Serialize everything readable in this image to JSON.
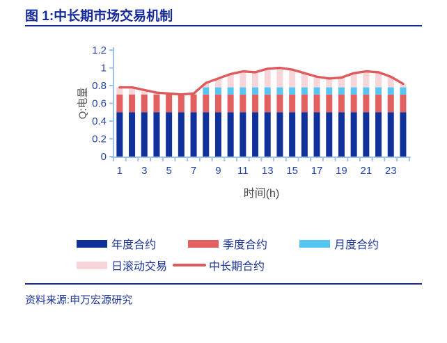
{
  "title": "图 1:中长期市场交易机制",
  "source": "资料来源:申万宏源研究",
  "colors": {
    "navy_text": "#1B3399",
    "title_navy": "#15299B",
    "axis": "#9DC3E6",
    "tick_label": "#2643A5",
    "annual_bar": "#10309A",
    "quarterly_bar": "#E2605F",
    "monthly_bar": "#57C5F2",
    "daily_bar": "#F7D5D8",
    "line": "#DF5A5C"
  },
  "chart_data": {
    "type": "bar",
    "subtype": "stacked-bars-with-line",
    "title": "图 1:中长期市场交易机制",
    "xlabel": "时间(h)",
    "ylabel": "Q:电量",
    "ylim": [
      0,
      1.2
    ],
    "grid": false,
    "legend_position": "bottom",
    "x": [
      1,
      2,
      3,
      4,
      5,
      6,
      7,
      8,
      9,
      10,
      11,
      12,
      13,
      14,
      15,
      16,
      17,
      18,
      19,
      20,
      21,
      22,
      23,
      24
    ],
    "x_tick_hours": [
      1,
      3,
      5,
      7,
      9,
      11,
      13,
      15,
      17,
      19,
      21,
      23
    ],
    "x_tick_labels": [
      "1",
      "3",
      "5",
      "7",
      "9",
      "11",
      "13",
      "15",
      "17",
      "19",
      "21",
      "23"
    ],
    "y_tick_values": [
      0,
      0.2,
      0.4,
      0.6,
      0.8,
      1,
      1.2
    ],
    "y_tick_labels": [
      "0",
      "0.2",
      "0.4",
      "0.6",
      "0.8",
      "1",
      "1.2"
    ],
    "series": [
      {
        "name": "年度合约",
        "type": "bar",
        "color": "#10309A",
        "values": [
          0.5,
          0.5,
          0.5,
          0.5,
          0.5,
          0.5,
          0.5,
          0.5,
          0.5,
          0.5,
          0.5,
          0.5,
          0.5,
          0.5,
          0.5,
          0.5,
          0.5,
          0.5,
          0.5,
          0.5,
          0.5,
          0.5,
          0.5,
          0.5
        ]
      },
      {
        "name": "季度合约",
        "type": "bar",
        "color": "#E2605F",
        "values": [
          0.2,
          0.2,
          0.2,
          0.2,
          0.2,
          0.2,
          0.2,
          0.2,
          0.2,
          0.2,
          0.2,
          0.2,
          0.2,
          0.2,
          0.2,
          0.2,
          0.2,
          0.2,
          0.2,
          0.2,
          0.2,
          0.2,
          0.2,
          0.2
        ]
      },
      {
        "name": "月度合约",
        "type": "bar",
        "color": "#57C5F2",
        "values": [
          0,
          0,
          0,
          0,
          0,
          0,
          0,
          0.08,
          0.08,
          0.08,
          0.08,
          0.08,
          0.08,
          0.08,
          0.08,
          0.08,
          0.08,
          0.08,
          0.08,
          0.08,
          0.08,
          0.08,
          0.08,
          0.08
        ]
      },
      {
        "name": "日滚动交易",
        "type": "bar",
        "color": "#F7D5D8",
        "values": [
          0.08,
          0.08,
          0.05,
          0.02,
          0.01,
          0,
          0.01,
          0.05,
          0.1,
          0.15,
          0.18,
          0.17,
          0.21,
          0.22,
          0.2,
          0.16,
          0.12,
          0.1,
          0.11,
          0.16,
          0.18,
          0.17,
          0.12,
          0.04
        ]
      },
      {
        "name": "中长期合约",
        "type": "line",
        "color": "#DF5A5C",
        "values": [
          0.78,
          0.78,
          0.75,
          0.72,
          0.71,
          0.7,
          0.71,
          0.83,
          0.88,
          0.93,
          0.96,
          0.95,
          0.99,
          1.0,
          0.98,
          0.94,
          0.9,
          0.88,
          0.89,
          0.94,
          0.96,
          0.95,
          0.9,
          0.82
        ]
      }
    ],
    "legend": [
      {
        "label": "年度合约",
        "color": "#10309A",
        "shape": "bar",
        "row": 1
      },
      {
        "label": "季度合约",
        "color": "#E2605F",
        "shape": "bar",
        "row": 1
      },
      {
        "label": "月度合约",
        "color": "#57C5F2",
        "shape": "bar",
        "row": 1
      },
      {
        "label": "日滚动交易",
        "color": "#F7D5D8",
        "shape": "bar",
        "row": 2
      },
      {
        "label": "中长期合约",
        "color": "#DF5A5C",
        "shape": "line",
        "row": 2
      }
    ]
  }
}
